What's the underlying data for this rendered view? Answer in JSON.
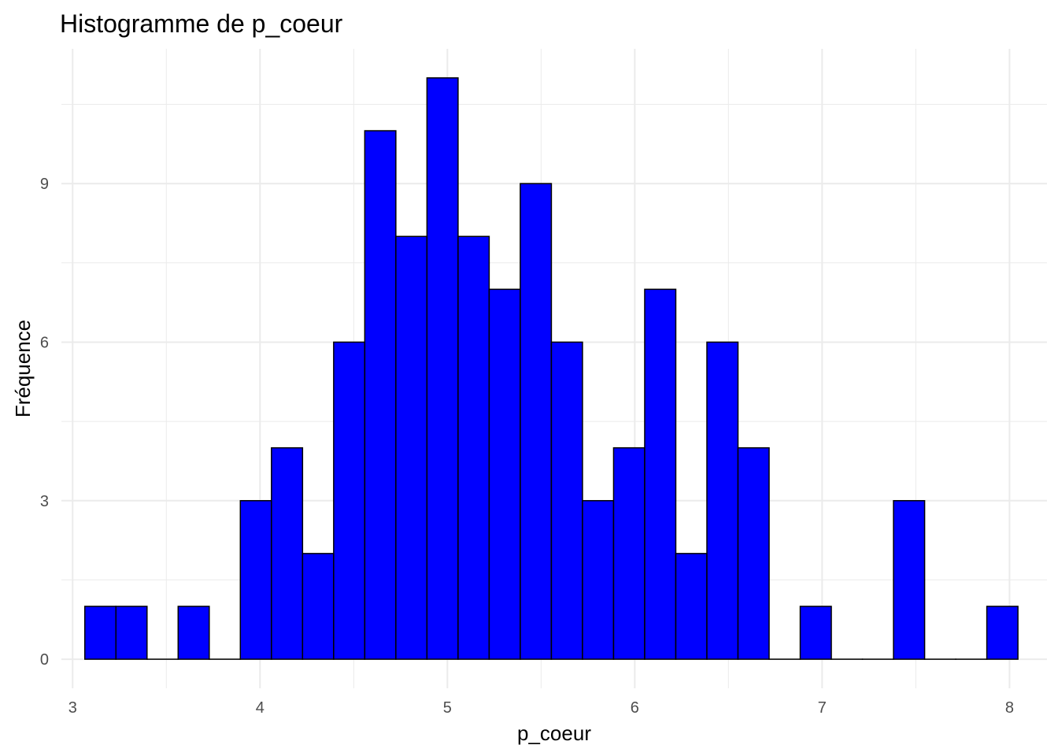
{
  "chart_data": {
    "type": "bar",
    "title": "Histogramme de p_coeur",
    "xlabel": "p_coeur",
    "ylabel": "Fréquence",
    "xlim": [
      2.94,
      8.2
    ],
    "ylim": [
      -0.55,
      11.55
    ],
    "x_ticks": [
      3,
      4,
      5,
      6,
      7,
      8
    ],
    "x_tick_labels": [
      "3",
      "4",
      "5",
      "6",
      "7",
      "8"
    ],
    "y_ticks": [
      0,
      3,
      6,
      9
    ],
    "y_tick_labels": [
      "0",
      "3",
      "6",
      "9"
    ],
    "bin_start": 3.065,
    "bin_width": 0.166,
    "values": [
      1,
      1,
      0,
      1,
      0,
      3,
      4,
      2,
      6,
      10,
      8,
      11,
      8,
      7,
      9,
      6,
      3,
      4,
      7,
      2,
      6,
      4,
      0,
      1,
      0,
      0,
      3,
      0,
      0,
      1
    ],
    "grid": true,
    "bar_fill": "#0000ff",
    "bar_stroke": "#000000",
    "grid_color": "#ebebeb"
  }
}
